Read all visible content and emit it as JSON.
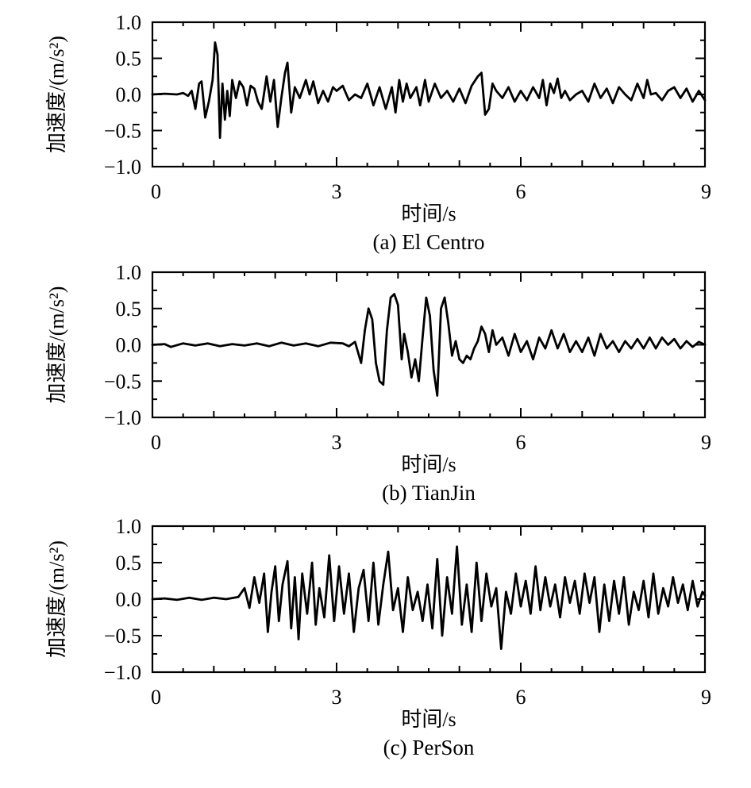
{
  "chart_data": [
    {
      "type": "line",
      "caption": "(a) El Centro",
      "xlabel": "时间/s",
      "ylabel": "加速度/(m/s²)",
      "xlim": [
        0,
        9
      ],
      "ylim": [
        -1.0,
        1.0
      ],
      "x_ticks": [
        "0",
        "3",
        "6",
        "9"
      ],
      "y_ticks": [
        "1.0",
        "0.5",
        "0.0",
        "−0.5",
        "−1.0"
      ],
      "series": [
        {
          "x": [
            0,
            0.2,
            0.4,
            0.5,
            0.58,
            0.64,
            0.7,
            0.76,
            0.8,
            0.86,
            0.92,
            0.98,
            1.02,
            1.06,
            1.1,
            1.14,
            1.18,
            1.22,
            1.26,
            1.3,
            1.36,
            1.42,
            1.48,
            1.54,
            1.6,
            1.66,
            1.72,
            1.78,
            1.86,
            1.92,
            1.98,
            2.04,
            2.1,
            2.16,
            2.2,
            2.26,
            2.32,
            2.4,
            2.5,
            2.56,
            2.62,
            2.7,
            2.78,
            2.86,
            2.94,
            3.0,
            3.1,
            3.2,
            3.3,
            3.4,
            3.5,
            3.6,
            3.7,
            3.8,
            3.9,
            3.96,
            4.02,
            4.08,
            4.14,
            4.2,
            4.3,
            4.36,
            4.44,
            4.5,
            4.6,
            4.7,
            4.8,
            4.9,
            5.0,
            5.1,
            5.2,
            5.3,
            5.36,
            5.42,
            5.48,
            5.54,
            5.6,
            5.7,
            5.8,
            5.9,
            6.0,
            6.1,
            6.2,
            6.3,
            6.36,
            6.42,
            6.48,
            6.54,
            6.6,
            6.66,
            6.72,
            6.8,
            6.9,
            7.0,
            7.1,
            7.2,
            7.3,
            7.4,
            7.5,
            7.6,
            7.7,
            7.8,
            7.9,
            8.0,
            8.06,
            8.12,
            8.2,
            8.3,
            8.4,
            8.5,
            8.6,
            8.7,
            8.8,
            8.9,
            9.0
          ],
          "values": [
            0.0,
            0.01,
            0.0,
            0.02,
            -0.02,
            0.05,
            -0.2,
            0.15,
            0.18,
            -0.32,
            -0.1,
            0.2,
            0.72,
            0.55,
            -0.6,
            0.15,
            -0.35,
            0.05,
            -0.3,
            0.2,
            -0.05,
            0.18,
            0.1,
            -0.15,
            0.12,
            0.08,
            -0.1,
            -0.2,
            0.25,
            -0.1,
            0.2,
            -0.45,
            -0.05,
            0.3,
            0.44,
            -0.25,
            0.1,
            -0.05,
            0.2,
            0.0,
            0.18,
            -0.12,
            0.05,
            -0.1,
            0.1,
            0.05,
            0.12,
            -0.08,
            0.0,
            -0.05,
            0.15,
            -0.15,
            0.1,
            -0.2,
            0.1,
            -0.25,
            0.2,
            -0.1,
            0.15,
            -0.05,
            0.1,
            -0.15,
            0.2,
            -0.1,
            0.15,
            -0.05,
            0.05,
            -0.1,
            0.08,
            -0.12,
            0.12,
            0.25,
            0.3,
            -0.28,
            -0.2,
            0.15,
            0.05,
            -0.05,
            0.1,
            -0.1,
            0.05,
            -0.08,
            0.1,
            -0.05,
            0.2,
            -0.15,
            0.15,
            0.02,
            0.22,
            -0.05,
            0.05,
            -0.08,
            0.0,
            0.05,
            -0.1,
            0.15,
            -0.05,
            0.08,
            -0.12,
            0.1,
            0.0,
            -0.08,
            0.15,
            -0.05,
            0.2,
            0.0,
            0.02,
            -0.08,
            0.05,
            0.1,
            -0.05,
            0.08,
            -0.1,
            0.05,
            -0.08
          ]
        }
      ]
    },
    {
      "type": "line",
      "caption": "(b) TianJin",
      "xlabel": "时间/s",
      "ylabel": "加速度/(m/s²)",
      "xlim": [
        0,
        9
      ],
      "ylim": [
        -1.0,
        1.0
      ],
      "x_ticks": [
        "0",
        "3",
        "6",
        "9"
      ],
      "y_ticks": [
        "1.0",
        "0.5",
        "0.0",
        "−0.5",
        "−1.0"
      ],
      "series": [
        {
          "x": [
            0,
            0.2,
            0.3,
            0.5,
            0.7,
            0.9,
            1.1,
            1.3,
            1.5,
            1.7,
            1.9,
            2.1,
            2.3,
            2.5,
            2.7,
            2.9,
            3.1,
            3.2,
            3.3,
            3.4,
            3.46,
            3.52,
            3.58,
            3.64,
            3.7,
            3.76,
            3.82,
            3.88,
            3.94,
            4.0,
            4.06,
            4.1,
            4.16,
            4.22,
            4.28,
            4.34,
            4.4,
            4.46,
            4.52,
            4.58,
            4.64,
            4.7,
            4.76,
            4.82,
            4.88,
            4.94,
            5.0,
            5.06,
            5.12,
            5.18,
            5.24,
            5.3,
            5.36,
            5.42,
            5.48,
            5.54,
            5.6,
            5.7,
            5.8,
            5.9,
            6.0,
            6.1,
            6.2,
            6.3,
            6.4,
            6.5,
            6.6,
            6.7,
            6.8,
            6.9,
            7.0,
            7.1,
            7.2,
            7.3,
            7.4,
            7.5,
            7.6,
            7.7,
            7.8,
            7.9,
            8.0,
            8.1,
            8.2,
            8.3,
            8.4,
            8.5,
            8.6,
            8.7,
            8.8,
            8.9,
            9.0
          ],
          "values": [
            0.0,
            0.01,
            -0.03,
            0.02,
            -0.01,
            0.02,
            -0.02,
            0.01,
            -0.01,
            0.02,
            -0.02,
            0.03,
            -0.01,
            0.02,
            -0.02,
            0.03,
            0.02,
            -0.02,
            0.04,
            -0.25,
            0.2,
            0.5,
            0.35,
            -0.25,
            -0.5,
            -0.55,
            0.2,
            0.65,
            0.7,
            0.55,
            -0.2,
            0.15,
            -0.1,
            -0.45,
            -0.2,
            -0.5,
            0.1,
            0.65,
            0.4,
            -0.35,
            -0.7,
            0.5,
            0.65,
            0.3,
            -0.15,
            0.05,
            -0.2,
            -0.25,
            -0.15,
            -0.2,
            -0.05,
            0.05,
            0.25,
            0.15,
            -0.1,
            0.2,
            0.0,
            0.1,
            -0.15,
            0.15,
            -0.1,
            0.05,
            -0.2,
            0.1,
            -0.05,
            0.2,
            -0.05,
            0.15,
            -0.1,
            0.05,
            -0.1,
            0.1,
            -0.15,
            0.15,
            -0.05,
            0.05,
            -0.1,
            0.05,
            -0.05,
            0.08,
            -0.05,
            0.1,
            -0.05,
            0.1,
            0.0,
            0.08,
            -0.05,
            0.05,
            -0.03,
            0.04,
            0.0
          ]
        }
      ]
    },
    {
      "type": "line",
      "caption": "(c) PerSon",
      "xlabel": "时间/s",
      "ylabel": "加速度/(m/s²)",
      "xlim": [
        0,
        9
      ],
      "ylim": [
        -1.0,
        1.0
      ],
      "x_ticks": [
        "0",
        "3",
        "6",
        "9"
      ],
      "y_ticks": [
        "1.0",
        "0.5",
        "0.0",
        "−0.5",
        "−1.0"
      ],
      "series": [
        {
          "x": [
            0,
            0.2,
            0.4,
            0.6,
            0.8,
            1.0,
            1.2,
            1.4,
            1.5,
            1.58,
            1.66,
            1.74,
            1.82,
            1.88,
            1.94,
            2.0,
            2.06,
            2.12,
            2.2,
            2.26,
            2.32,
            2.38,
            2.44,
            2.52,
            2.6,
            2.66,
            2.72,
            2.8,
            2.88,
            2.96,
            3.04,
            3.12,
            3.2,
            3.28,
            3.36,
            3.44,
            3.52,
            3.6,
            3.68,
            3.76,
            3.84,
            3.92,
            4.0,
            4.08,
            4.16,
            4.24,
            4.32,
            4.4,
            4.48,
            4.56,
            4.64,
            4.72,
            4.8,
            4.88,
            4.96,
            5.04,
            5.12,
            5.2,
            5.28,
            5.36,
            5.44,
            5.52,
            5.6,
            5.68,
            5.76,
            5.84,
            5.92,
            6.0,
            6.08,
            6.16,
            6.24,
            6.32,
            6.4,
            6.48,
            6.56,
            6.64,
            6.72,
            6.8,
            6.88,
            6.96,
            7.04,
            7.12,
            7.2,
            7.28,
            7.36,
            7.44,
            7.52,
            7.6,
            7.68,
            7.76,
            7.84,
            7.92,
            8.0,
            8.08,
            8.16,
            8.24,
            8.32,
            8.4,
            8.48,
            8.56,
            8.64,
            8.72,
            8.8,
            8.88,
            8.96,
            9.0
          ],
          "values": [
            0.0,
            0.01,
            -0.01,
            0.02,
            -0.01,
            0.02,
            0.0,
            0.03,
            0.15,
            -0.12,
            0.3,
            -0.05,
            0.35,
            -0.45,
            0.1,
            0.45,
            -0.3,
            0.2,
            0.52,
            -0.4,
            0.3,
            -0.55,
            0.35,
            -0.2,
            0.5,
            -0.35,
            0.15,
            -0.25,
            0.6,
            -0.3,
            0.45,
            -0.2,
            0.35,
            -0.45,
            0.15,
            0.4,
            -0.3,
            0.5,
            -0.35,
            0.2,
            0.65,
            -0.15,
            0.15,
            -0.45,
            0.3,
            -0.15,
            0.1,
            -0.3,
            0.2,
            -0.4,
            0.55,
            -0.5,
            0.3,
            -0.2,
            0.72,
            -0.35,
            0.2,
            -0.45,
            0.5,
            -0.3,
            0.35,
            -0.1,
            0.15,
            -0.68,
            0.1,
            -0.2,
            0.35,
            -0.1,
            0.25,
            -0.2,
            0.45,
            -0.15,
            0.3,
            -0.1,
            0.2,
            -0.25,
            0.3,
            -0.05,
            0.25,
            -0.2,
            0.35,
            -0.05,
            0.3,
            -0.45,
            0.2,
            -0.3,
            0.25,
            -0.2,
            0.3,
            -0.35,
            0.1,
            -0.15,
            0.25,
            -0.25,
            0.35,
            -0.2,
            0.15,
            -0.1,
            0.3,
            -0.05,
            0.2,
            -0.15,
            0.25,
            -0.1,
            0.1,
            0.05
          ]
        }
      ]
    }
  ]
}
